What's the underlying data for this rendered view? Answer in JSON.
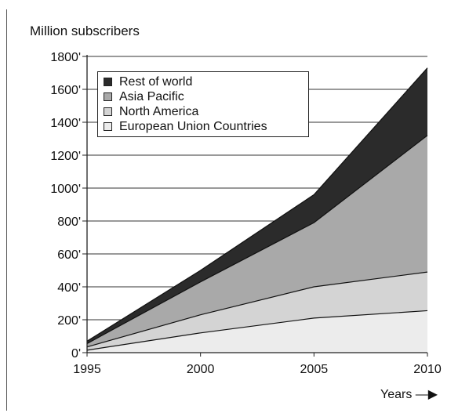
{
  "chart_data": {
    "type": "area",
    "stacked": true,
    "ylabel": "Million subscribers",
    "xlabel": "Years",
    "x": [
      1995,
      2000,
      2005,
      2010
    ],
    "x_ticks": [
      "1995",
      "2000",
      "2005",
      "2010"
    ],
    "y_ticks": [
      "0'",
      "200'",
      "400'",
      "600'",
      "800'",
      "1000'",
      "1200'",
      "1400'",
      "1600'",
      "1800'"
    ],
    "ylim": [
      0,
      1800
    ],
    "xlim": [
      1995,
      2010
    ],
    "grid": "horizontal",
    "legend_position": "top-left",
    "series": [
      {
        "name": "European Union Countries",
        "values": [
          15,
          120,
          210,
          255
        ],
        "fill": "#ececec"
      },
      {
        "name": "North America",
        "values": [
          20,
          110,
          190,
          235
        ],
        "fill": "#d4d4d4"
      },
      {
        "name": "Asia Pacific",
        "values": [
          20,
          200,
          390,
          830
        ],
        "fill": "#a9a9a9"
      },
      {
        "name": "Rest of world",
        "values": [
          15,
          70,
          170,
          410
        ],
        "fill": "#2b2b2b"
      }
    ]
  }
}
